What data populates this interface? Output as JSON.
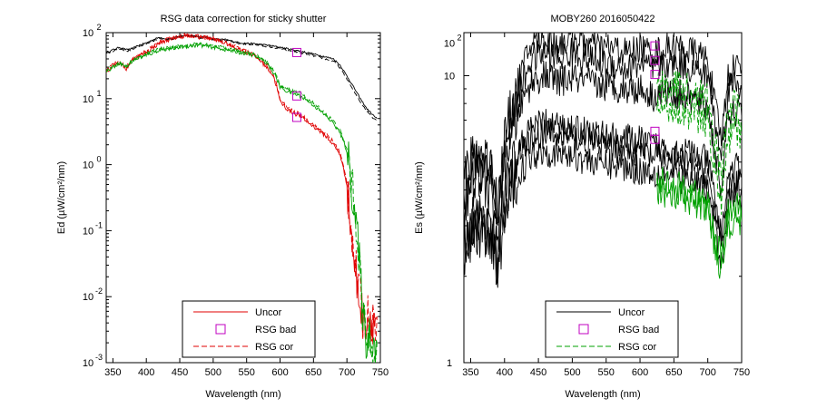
{
  "chart_data": [
    {
      "type": "line",
      "title": "RSG data correction for sticky shutter",
      "xlabel": "Wavelength (nm)",
      "ylabel": "Ed (µW/cm²/nm)",
      "xlim": [
        340,
        750
      ],
      "ylim_log10": [
        -3,
        2
      ],
      "yscale": "log",
      "grid": false,
      "legend_position": "bottom-center",
      "x_ticks": [
        "350",
        "400",
        "450",
        "500",
        "550",
        "600",
        "650",
        "700",
        "750"
      ],
      "y_ticks": [
        {
          "base": "10",
          "exp": "2"
        },
        {
          "base": "10",
          "exp": "1"
        },
        {
          "base": "10",
          "exp": "0"
        },
        {
          "base": "10",
          "exp": "-1"
        },
        {
          "base": "10",
          "exp": "-2"
        },
        {
          "base": "10",
          "exp": "-3"
        }
      ],
      "legend": [
        {
          "label": "Uncor",
          "color": "#e00000",
          "dash": "solid"
        },
        {
          "label": "RSG bad",
          "color": "#c000c0",
          "marker": "square"
        },
        {
          "label": "RSG cor",
          "color": "#e00000",
          "dash": "dashed"
        }
      ],
      "series": [
        {
          "color": "#000000",
          "dash": "solid",
          "noise": "low",
          "x": [
            340,
            350,
            360,
            370,
            380,
            390,
            400,
            410,
            420,
            430,
            440,
            450,
            460,
            470,
            480,
            490,
            500,
            520,
            540,
            560,
            580,
            600,
            620,
            640,
            660,
            680,
            690,
            700,
            710,
            720,
            730,
            740,
            745
          ],
          "y": [
            50,
            55,
            60,
            55,
            58,
            65,
            70,
            78,
            85,
            80,
            82,
            88,
            92,
            90,
            85,
            88,
            80,
            78,
            70,
            68,
            65,
            60,
            55,
            50,
            45,
            40,
            32,
            22,
            15,
            10,
            7,
            5.5,
            5
          ]
        },
        {
          "color": "#000000",
          "dash": "dashed",
          "noise": "low",
          "x": [
            340,
            350,
            360,
            370,
            380,
            390,
            400,
            410,
            420,
            430,
            440,
            450,
            460,
            470,
            480,
            490,
            500,
            520,
            540,
            560,
            580,
            600,
            620,
            640,
            660,
            680,
            690,
            700,
            710,
            720,
            730,
            740,
            745
          ],
          "y": [
            48,
            52,
            57,
            52,
            56,
            62,
            68,
            75,
            82,
            78,
            80,
            86,
            90,
            88,
            83,
            86,
            78,
            76,
            68,
            66,
            62,
            57,
            52,
            47,
            42,
            37,
            29,
            20,
            13,
            9,
            6.5,
            5,
            4.8
          ]
        },
        {
          "color": "#e00000",
          "dash": "solid",
          "noise": "med",
          "x": [
            340,
            350,
            360,
            370,
            380,
            390,
            400,
            420,
            440,
            460,
            480,
            500,
            520,
            540,
            560,
            570,
            580,
            590,
            595,
            600,
            610,
            620,
            630,
            640,
            650,
            660,
            670,
            680,
            690,
            700,
            710,
            715,
            720,
            725,
            730,
            735,
            740,
            745
          ],
          "y": [
            25,
            32,
            35,
            28,
            40,
            45,
            50,
            70,
            82,
            90,
            85,
            80,
            68,
            55,
            45,
            38,
            30,
            22,
            15,
            9,
            7,
            6,
            5.5,
            4.5,
            3.8,
            3.2,
            2.6,
            2.0,
            1.4,
            0.5,
            0.04,
            0.015,
            0.008,
            0.004,
            0.005,
            0.005,
            0.004,
            0.005
          ]
        },
        {
          "color": "#e00000",
          "dash": "dashed",
          "noise": "med",
          "x": [
            340,
            350,
            360,
            370,
            380,
            390,
            400,
            420,
            440,
            460,
            480,
            500,
            520,
            540,
            560,
            570,
            580,
            590,
            595,
            600,
            610,
            620,
            630,
            640,
            650,
            660,
            670,
            680,
            690,
            700,
            710,
            715,
            720,
            725,
            730,
            735,
            740,
            745
          ],
          "y": [
            26,
            33,
            36,
            29,
            41,
            46,
            52,
            72,
            84,
            92,
            87,
            82,
            70,
            57,
            47,
            40,
            32,
            23,
            16,
            9.5,
            7.5,
            6.3,
            5.8,
            4.8,
            4.0,
            3.4,
            2.8,
            2.2,
            1.5,
            0.55,
            0.05,
            0.018,
            0.009,
            0.004,
            0.005,
            0.005,
            0.004,
            0.005
          ]
        },
        {
          "color": "#00a000",
          "dash": "solid",
          "noise": "med",
          "x": [
            340,
            350,
            360,
            370,
            380,
            390,
            400,
            420,
            440,
            460,
            480,
            500,
            520,
            540,
            560,
            570,
            580,
            590,
            595,
            600,
            610,
            620,
            630,
            640,
            650,
            660,
            670,
            680,
            690,
            700,
            710,
            715,
            720,
            725,
            730,
            735,
            740,
            745
          ],
          "y": [
            25,
            30,
            35,
            30,
            38,
            42,
            45,
            55,
            58,
            62,
            65,
            60,
            55,
            50,
            46,
            40,
            35,
            25,
            20,
            15,
            13,
            12,
            11,
            9.5,
            8,
            6.5,
            5.3,
            4.2,
            3.0,
            1.6,
            0.3,
            0.1,
            0.02,
            0.004,
            0.002,
            0.003,
            0.002,
            0.002
          ]
        },
        {
          "color": "#00a000",
          "dash": "dashed",
          "noise": "med",
          "x": [
            340,
            350,
            360,
            370,
            380,
            390,
            400,
            420,
            440,
            460,
            480,
            500,
            520,
            540,
            560,
            570,
            580,
            590,
            595,
            600,
            610,
            620,
            630,
            640,
            650,
            660,
            670,
            680,
            690,
            700,
            710,
            715,
            720,
            725,
            730,
            735,
            740,
            745
          ],
          "y": [
            26,
            31,
            36,
            31,
            39,
            43,
            47,
            57,
            60,
            64,
            67,
            62,
            57,
            52,
            48,
            42,
            37,
            27,
            22,
            16,
            14,
            13,
            12,
            10,
            8.5,
            7,
            5.7,
            4.5,
            3.2,
            1.7,
            0.32,
            0.1,
            0.022,
            0.004,
            0.002,
            0.003,
            0.002,
            0.002
          ]
        }
      ],
      "markers": [
        {
          "x": 625,
          "y": 50,
          "color": "#c000c0"
        },
        {
          "x": 625,
          "y": 11,
          "color": "#c000c0"
        },
        {
          "x": 625,
          "y": 5.2,
          "color": "#c000c0"
        }
      ]
    },
    {
      "type": "line",
      "title": "MOBY260  2016050422",
      "xlabel": "Wavelength (nm)",
      "ylabel": "Es (µW/cm²/nm)",
      "xlim": [
        340,
        750
      ],
      "ylim_log10": [
        0,
        1.15
      ],
      "yscale": "log",
      "grid": false,
      "legend_position": "bottom-center",
      "x_ticks": [
        "350",
        "400",
        "450",
        "500",
        "550",
        "600",
        "650",
        "700",
        "750"
      ],
      "y_ticks": [
        {
          "base": "10",
          "exp": "2"
        },
        {
          "base": "10",
          "exp": ""
        },
        {
          "base": "1",
          "exp": ""
        }
      ],
      "legend": [
        {
          "label": "Uncor",
          "color": "#000000",
          "dash": "solid"
        },
        {
          "label": "RSG bad",
          "color": "#c000c0",
          "marker": "square"
        },
        {
          "label": "RSG cor",
          "color": "#00a000",
          "dash": "dashed"
        }
      ],
      "series": [
        {
          "color": "#000000",
          "dash": "solid",
          "noise": "high",
          "x": [
            340,
            360,
            380,
            390,
            400,
            420,
            440,
            460,
            480,
            500,
            520,
            540,
            560,
            580,
            600,
            620,
            640,
            660,
            680,
            700,
            710,
            720,
            730,
            740,
            750
          ],
          "y": [
            4.5,
            5.5,
            5,
            3.5,
            6,
            9.5,
            13,
            13.5,
            13,
            13.5,
            13,
            12.5,
            12.5,
            12,
            12.5,
            12,
            12.5,
            12.5,
            12,
            11.5,
            8,
            6,
            10,
            11,
            10.5
          ]
        },
        {
          "color": "#000000",
          "dash": "solid",
          "noise": "high",
          "x": [
            340,
            360,
            380,
            390,
            400,
            420,
            440,
            460,
            480,
            500,
            520,
            540,
            560,
            580,
            600,
            620,
            640,
            660,
            680,
            700,
            710,
            720,
            730,
            740,
            750
          ],
          "y": [
            4,
            5,
            4.5,
            3.2,
            5.5,
            8.5,
            11.5,
            12,
            11.5,
            12,
            11.5,
            11,
            11,
            10.5,
            11,
            10.5,
            11,
            11,
            10.5,
            10,
            7,
            5.2,
            9,
            9.5,
            9
          ]
        },
        {
          "color": "#000000",
          "dash": "solid",
          "noise": "high",
          "x": [
            340,
            360,
            380,
            390,
            400,
            420,
            440,
            460,
            480,
            500,
            520,
            540,
            560,
            580,
            600,
            620,
            640,
            660,
            680,
            700,
            710,
            720,
            730,
            740,
            750
          ],
          "y": [
            3.5,
            4.5,
            4,
            2.8,
            5,
            7.5,
            9.5,
            10,
            9.5,
            9.8,
            9.5,
            9.2,
            9.2,
            9,
            9,
            8.5,
            8.8,
            8.6,
            8.2,
            7.8,
            5.5,
            4,
            7,
            7.5,
            7.2
          ]
        },
        {
          "color": "#000000",
          "dash": "solid",
          "noise": "high",
          "x": [
            340,
            360,
            380,
            390,
            400,
            420,
            440,
            460,
            480,
            500,
            520,
            540,
            560,
            580,
            600,
            620,
            640,
            660,
            680,
            700,
            710,
            720,
            730,
            740,
            750
          ],
          "y": [
            2.8,
            3.3,
            3,
            2.3,
            3.8,
            5.5,
            6.6,
            6.8,
            6.6,
            6.6,
            6.4,
            6.2,
            6.1,
            6,
            5.9,
            5.7,
            5.6,
            5.5,
            5.3,
            5,
            3.8,
            2.7,
            4.5,
            4.8,
            4.6
          ]
        },
        {
          "color": "#000000",
          "dash": "solid",
          "noise": "high",
          "x": [
            340,
            360,
            380,
            390,
            400,
            420,
            440,
            460,
            480,
            500,
            520,
            540,
            560,
            580,
            600,
            620,
            640,
            660,
            680,
            700,
            710,
            720,
            730,
            740,
            750
          ],
          "y": [
            2.6,
            3.1,
            2.8,
            2.1,
            3.5,
            5.1,
            6.1,
            6.3,
            6.1,
            6.1,
            5.9,
            5.7,
            5.6,
            5.5,
            5.4,
            5.2,
            5.1,
            5,
            4.8,
            4.5,
            3.4,
            2.4,
            4.1,
            4.3,
            4.1
          ]
        },
        {
          "color": "#000000",
          "dash": "solid",
          "noise": "high",
          "x": [
            340,
            360,
            380,
            390,
            400,
            420,
            440,
            460,
            480,
            500,
            520,
            540,
            560,
            580,
            600,
            620,
            640,
            660,
            680,
            700,
            710,
            720,
            730,
            740,
            750
          ],
          "y": [
            2.4,
            2.9,
            2.6,
            2,
            3.2,
            4.5,
            5.3,
            5.5,
            5.3,
            5.3,
            5.1,
            5,
            4.9,
            4.8,
            4.7,
            4.6,
            4.5,
            4.4,
            4.2,
            4,
            3,
            2.2,
            3.7,
            3.9,
            3.7
          ]
        },
        {
          "color": "#00a000",
          "dash": "dashed",
          "noise": "high",
          "x": [
            625,
            640,
            660,
            680,
            700,
            710,
            720,
            730,
            740,
            750
          ],
          "y": [
            9.3,
            9.4,
            9.2,
            8.8,
            8.3,
            6,
            4.5,
            7.5,
            8,
            7.7
          ]
        },
        {
          "color": "#00a000",
          "dash": "dashed",
          "noise": "high",
          "x": [
            625,
            640,
            660,
            680,
            700,
            710,
            720,
            730,
            740,
            750
          ],
          "y": [
            7.6,
            7.8,
            7.6,
            7.2,
            6.8,
            4.8,
            3.6,
            6,
            6.4,
            6.2
          ]
        },
        {
          "color": "#00a000",
          "dash": "solid",
          "noise": "high",
          "x": [
            625,
            640,
            660,
            680,
            700,
            710,
            720,
            730,
            740,
            750
          ],
          "y": [
            4.3,
            4.3,
            4.1,
            3.9,
            3.6,
            2.8,
            2.3,
            3.3,
            3.5,
            3.4
          ]
        },
        {
          "color": "#00a000",
          "dash": "solid",
          "noise": "high",
          "x": [
            625,
            640,
            660,
            680,
            700,
            710,
            720,
            730,
            740,
            750
          ],
          "y": [
            4.0,
            3.9,
            3.8,
            3.6,
            3.4,
            2.6,
            2.1,
            3.0,
            3.2,
            3.1
          ]
        }
      ],
      "markers": [
        {
          "x": 622,
          "y": 12.7,
          "color": "#c000c0"
        },
        {
          "x": 622,
          "y": 11.3,
          "color": "#c000c0"
        },
        {
          "x": 622,
          "y": 10.1,
          "color": "#c000c0"
        },
        {
          "x": 622,
          "y": 6.4,
          "color": "#c000c0"
        },
        {
          "x": 622,
          "y": 6.0,
          "color": "#c000c0"
        }
      ]
    }
  ]
}
